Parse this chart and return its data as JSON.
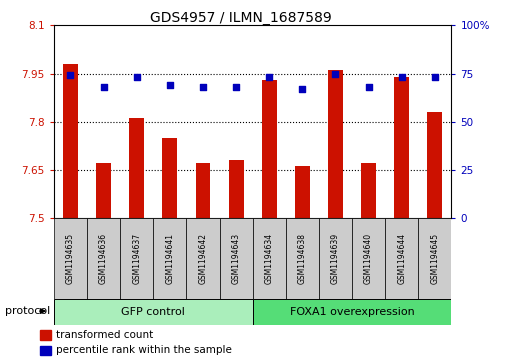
{
  "title": "GDS4957 / ILMN_1687589",
  "samples": [
    "GSM1194635",
    "GSM1194636",
    "GSM1194637",
    "GSM1194641",
    "GSM1194642",
    "GSM1194643",
    "GSM1194634",
    "GSM1194638",
    "GSM1194639",
    "GSM1194640",
    "GSM1194644",
    "GSM1194645"
  ],
  "bar_values": [
    7.98,
    7.67,
    7.81,
    7.75,
    7.67,
    7.68,
    7.93,
    7.66,
    7.96,
    7.67,
    7.94,
    7.83
  ],
  "dot_values": [
    74,
    68,
    73,
    69,
    68,
    68,
    73,
    67,
    75,
    68,
    73,
    73
  ],
  "ylim_left": [
    7.5,
    8.1
  ],
  "ylim_right": [
    0,
    100
  ],
  "yticks_left": [
    7.5,
    7.65,
    7.8,
    7.95,
    8.1
  ],
  "ytick_labels_left": [
    "7.5",
    "7.65",
    "7.8",
    "7.95",
    "8.1"
  ],
  "yticks_right": [
    0,
    25,
    50,
    75,
    100
  ],
  "ytick_labels_right": [
    "0",
    "25",
    "50",
    "75",
    "100%"
  ],
  "hlines": [
    7.65,
    7.8,
    7.95
  ],
  "bar_color": "#cc1100",
  "dot_color": "#0000bb",
  "bar_bottom": 7.5,
  "groups": [
    {
      "label": "GFP control",
      "start": 0,
      "end": 6,
      "color": "#aaeebb"
    },
    {
      "label": "FOXA1 overexpression",
      "start": 6,
      "end": 12,
      "color": "#55dd77"
    }
  ],
  "protocol_label": "protocol",
  "legend_bar_label": "transformed count",
  "legend_dot_label": "percentile rank within the sample",
  "tick_color_left": "#cc1100",
  "tick_color_right": "#0000bb",
  "sample_bg": "#cccccc"
}
